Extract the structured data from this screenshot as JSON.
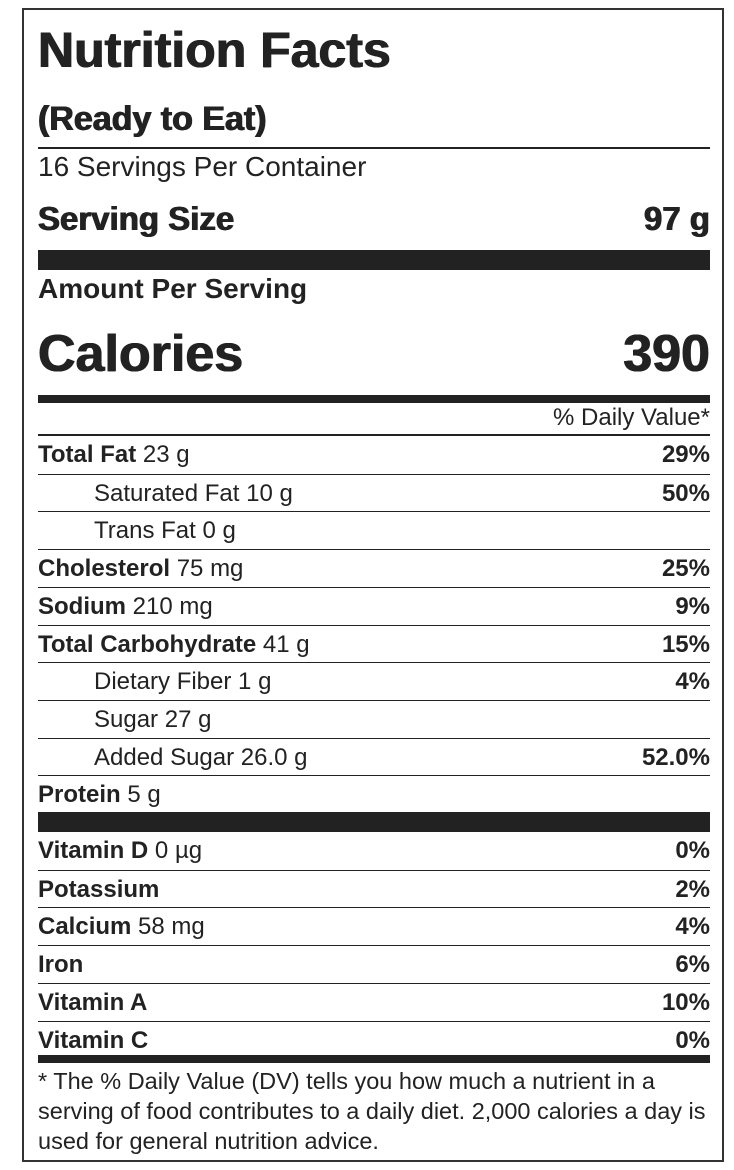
{
  "label": {
    "title": "Nutrition Facts",
    "subtitle": "(Ready to Eat)",
    "servings": "16 Servings Per Container",
    "serving_size_label": "Serving Size",
    "serving_size_value": "97 g",
    "amount_per_serving": "Amount Per Serving",
    "calories_label": "Calories",
    "calories_value": "390",
    "dv_header": "% Daily Value*",
    "nutrients": [
      {
        "name": "Total Fat",
        "amount": "23 g",
        "dv": "29%"
      },
      {
        "name": "Saturated Fat",
        "amount": "10 g",
        "dv": "50%",
        "indent": true
      },
      {
        "name": "Trans Fat",
        "amount": "0 g",
        "indent": true
      },
      {
        "name": "Cholesterol",
        "amount": "75 mg",
        "dv": "25%"
      },
      {
        "name": "Sodium",
        "amount": "210 mg",
        "dv": "9%"
      },
      {
        "name": "Total Carbohydrate",
        "amount": "41 g",
        "dv": "15%"
      },
      {
        "name": "Dietary Fiber",
        "amount": "1 g",
        "dv": "4%",
        "indent": true
      },
      {
        "name": "Sugar",
        "amount": "27 g",
        "indent": true
      },
      {
        "name": "Added Sugar",
        "amount": "26.0 g",
        "dv": "52.0%",
        "indent": true
      },
      {
        "name": "Protein",
        "amount": "5 g"
      }
    ],
    "vitamins": [
      {
        "name": "Vitamin D",
        "amount": "0 µg",
        "dv": "0%"
      },
      {
        "name": "Potassium",
        "dv": "2%"
      },
      {
        "name": "Calcium",
        "amount": "58 mg",
        "dv": "4%"
      },
      {
        "name": "Iron",
        "dv": "6%"
      },
      {
        "name": "Vitamin A",
        "dv": "10%"
      },
      {
        "name": "Vitamin C",
        "dv": "0%"
      }
    ],
    "footnote": "* The % Daily Value (DV) tells you how much a nutrient in a serving of food contributes to a daily diet. 2,000 calories a day is used for general nutrition advice."
  }
}
